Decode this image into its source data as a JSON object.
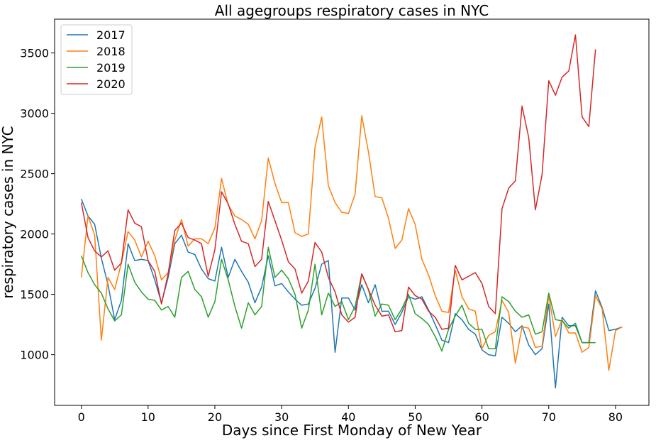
{
  "chart_data": {
    "type": "line",
    "title": "All agegroups respiratory cases in NYC",
    "xlabel": "Days since First Monday of New Year",
    "ylabel": "respiratory cases in NYC",
    "xlim": [
      -4,
      85
    ],
    "ylim": [
      580,
      3780
    ],
    "xticks": [
      0,
      10,
      20,
      30,
      40,
      50,
      60,
      70,
      80
    ],
    "yticks": [
      1000,
      1500,
      2000,
      2500,
      3000,
      3500
    ],
    "grid": false,
    "legend_position": "top-left",
    "series": [
      {
        "name": "2017",
        "color": "#1f77b4",
        "x": [
          0,
          1,
          2,
          3,
          4,
          5,
          6,
          7,
          8,
          9,
          10,
          11,
          12,
          13,
          14,
          15,
          16,
          17,
          18,
          19,
          20,
          21,
          22,
          23,
          24,
          25,
          26,
          27,
          28,
          29,
          30,
          31,
          32,
          33,
          34,
          35,
          36,
          37,
          38,
          39,
          40,
          41,
          42,
          43,
          44,
          45,
          46,
          47,
          48,
          49,
          50,
          51,
          52,
          53,
          54,
          55,
          56,
          57,
          58,
          59,
          60,
          61,
          62,
          63,
          64,
          65,
          66,
          67,
          68,
          69,
          70,
          71,
          72,
          73,
          74,
          75,
          76,
          77,
          78,
          79,
          80,
          81
        ],
        "y": [
          2290,
          2150,
          2080,
          1800,
          1580,
          1290,
          1450,
          1920,
          1780,
          1790,
          1780,
          1620,
          1430,
          1640,
          1920,
          1990,
          1850,
          1830,
          1710,
          1630,
          1610,
          1890,
          1640,
          1790,
          1690,
          1600,
          1430,
          1560,
          1820,
          1570,
          1590,
          1520,
          1460,
          1410,
          1420,
          1550,
          1750,
          1780,
          1020,
          1470,
          1470,
          1370,
          1580,
          1430,
          1580,
          1360,
          1360,
          1250,
          1350,
          1480,
          1460,
          1480,
          1370,
          1250,
          1120,
          1100,
          1340,
          1290,
          1210,
          1170,
          1040,
          1000,
          990,
          1310,
          1260,
          1190,
          1240,
          1080,
          1000,
          1050,
          1420,
          725,
          1310,
          1240,
          1240,
          1100,
          1100,
          1530,
          1390,
          1200,
          1210,
          1230
        ]
      },
      {
        "name": "2018",
        "color": "#ff7f0e",
        "x": [
          0,
          1,
          2,
          3,
          4,
          5,
          6,
          7,
          8,
          9,
          10,
          11,
          12,
          13,
          14,
          15,
          16,
          17,
          18,
          19,
          20,
          21,
          22,
          23,
          24,
          25,
          26,
          27,
          28,
          29,
          30,
          31,
          32,
          33,
          34,
          35,
          36,
          37,
          38,
          39,
          40,
          41,
          42,
          43,
          44,
          45,
          46,
          47,
          48,
          49,
          50,
          51,
          52,
          53,
          54,
          55,
          56,
          57,
          58,
          59,
          60,
          61,
          62,
          63,
          64,
          65,
          66,
          67,
          68,
          69,
          70,
          71,
          72,
          73,
          74,
          75,
          76,
          77,
          78,
          79,
          80,
          81
        ],
        "y": [
          1640,
          2150,
          1990,
          1120,
          1640,
          1540,
          1760,
          2020,
          1950,
          1810,
          1940,
          1820,
          1620,
          1680,
          1950,
          2120,
          1900,
          1960,
          1960,
          1920,
          2050,
          2460,
          2240,
          2150,
          2120,
          2080,
          1960,
          2110,
          2630,
          2420,
          2260,
          2260,
          2010,
          1980,
          2000,
          2720,
          2970,
          2400,
          2260,
          2180,
          2170,
          2330,
          2980,
          2680,
          2310,
          2300,
          2130,
          1880,
          1950,
          2210,
          2080,
          1790,
          1660,
          1490,
          1360,
          1350,
          1700,
          1480,
          1380,
          1360,
          1050,
          1160,
          1190,
          1450,
          1350,
          930,
          1230,
          1220,
          1060,
          1070,
          1490,
          1150,
          1290,
          1180,
          1180,
          1020,
          1060,
          1490,
          1380,
          870,
          1200,
          1230
        ]
      },
      {
        "name": "2019",
        "color": "#2ca02c",
        "x": [
          0,
          1,
          2,
          3,
          4,
          5,
          6,
          7,
          8,
          9,
          10,
          11,
          12,
          13,
          14,
          15,
          16,
          17,
          18,
          19,
          20,
          21,
          22,
          23,
          24,
          25,
          26,
          27,
          28,
          29,
          30,
          31,
          32,
          33,
          34,
          35,
          36,
          37,
          38,
          39,
          40,
          41,
          42,
          43,
          44,
          45,
          46,
          47,
          48,
          49,
          50,
          51,
          52,
          53,
          54,
          55,
          56,
          57,
          58,
          59,
          60,
          61,
          62,
          63,
          64,
          65,
          66,
          67,
          68,
          69,
          70,
          71,
          72,
          73,
          74,
          75,
          76,
          77
        ],
        "y": [
          1820,
          1680,
          1580,
          1510,
          1380,
          1280,
          1330,
          1750,
          1600,
          1520,
          1460,
          1450,
          1370,
          1400,
          1310,
          1640,
          1690,
          1540,
          1480,
          1310,
          1440,
          1790,
          1620,
          1400,
          1220,
          1430,
          1330,
          1400,
          1890,
          1640,
          1700,
          1630,
          1500,
          1220,
          1370,
          1750,
          1330,
          1510,
          1400,
          1440,
          1290,
          1400,
          1670,
          1540,
          1320,
          1420,
          1410,
          1290,
          1380,
          1500,
          1340,
          1300,
          1250,
          1150,
          1030,
          1210,
          1320,
          1410,
          1260,
          1210,
          1210,
          1050,
          1050,
          1480,
          1440,
          1360,
          1310,
          1330,
          1170,
          1190,
          1510,
          1290,
          1280,
          1220,
          1260,
          1100,
          1100,
          1100
        ]
      },
      {
        "name": "2020",
        "color": "#d62728",
        "x": [
          0,
          1,
          2,
          3,
          4,
          5,
          6,
          7,
          8,
          9,
          10,
          11,
          12,
          13,
          14,
          15,
          16,
          17,
          18,
          19,
          20,
          21,
          22,
          23,
          24,
          25,
          26,
          27,
          28,
          29,
          30,
          31,
          32,
          33,
          34,
          35,
          36,
          37,
          38,
          39,
          40,
          41,
          42,
          43,
          44,
          45,
          46,
          47,
          48,
          49,
          50,
          51,
          52,
          53,
          54,
          55,
          56,
          57,
          58,
          59,
          60,
          61,
          62,
          63,
          64,
          65,
          66,
          67,
          68,
          69,
          70,
          71,
          72,
          73,
          74,
          75,
          76,
          77
        ],
        "y": [
          2260,
          1970,
          1860,
          1810,
          1860,
          1700,
          1760,
          2200,
          2090,
          2060,
          1780,
          1690,
          1420,
          1670,
          2030,
          2090,
          1970,
          1950,
          1920,
          1650,
          1870,
          2350,
          2250,
          2080,
          1940,
          1920,
          1730,
          1790,
          2270,
          2110,
          1950,
          1770,
          1710,
          1510,
          1610,
          1930,
          1850,
          1640,
          1520,
          1330,
          1270,
          1310,
          1670,
          1540,
          1410,
          1320,
          1330,
          1190,
          1200,
          1560,
          1490,
          1460,
          1360,
          1310,
          1210,
          1220,
          1740,
          1620,
          1650,
          1680,
          1590,
          1400,
          1340,
          2210,
          2380,
          2440,
          3060,
          2800,
          2200,
          2490,
          3270,
          3150,
          3300,
          3350,
          3650,
          2970,
          2890,
          3530
        ]
      }
    ]
  }
}
